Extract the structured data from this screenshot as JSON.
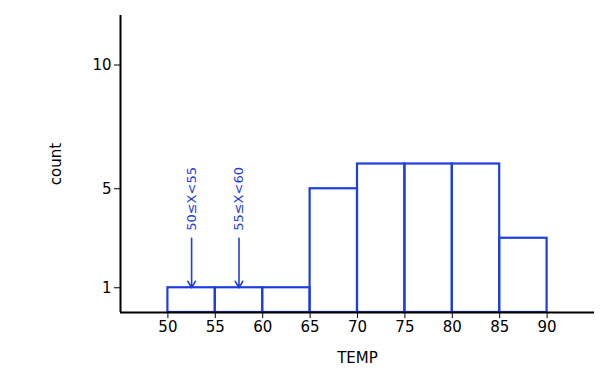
{
  "chart_data": {
    "type": "histogram",
    "x_label": "TEMP",
    "y_label": "count",
    "bins": [
      50,
      55,
      60,
      65,
      70,
      75,
      80,
      85,
      90
    ],
    "values": [
      1,
      1,
      1,
      5,
      6,
      6,
      6,
      3
    ],
    "color": "#1f3ee0",
    "xlim": [
      45,
      95
    ],
    "xticks": [
      50,
      55,
      60,
      65,
      70,
      75,
      80,
      85,
      90
    ],
    "ylim": [
      0,
      12
    ],
    "yticks": [
      1,
      5,
      10
    ],
    "grid": false,
    "annotations": [
      {
        "text": "50≤X<55",
        "x": 52.5,
        "y": 1
      },
      {
        "text": "55≤X<60",
        "x": 57.5,
        "y": 1
      }
    ]
  }
}
